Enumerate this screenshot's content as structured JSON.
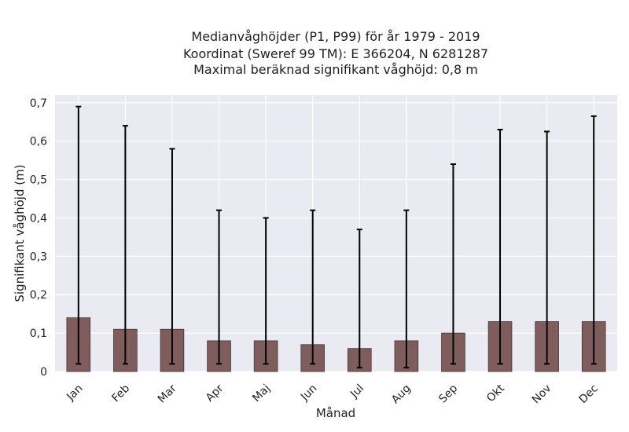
{
  "chart_data": {
    "type": "bar",
    "title_lines": [
      "Medianvåghöjder (P1, P99) för år 1979 - 2019",
      "Koordinat (Sweref 99 TM): E 366204, N 6281287",
      "Maximal beräknad signifikant våghöjd: 0,8 m"
    ],
    "xlabel": "Månad",
    "ylabel": "Signifikant våghöjd (m)",
    "categories": [
      "Jan",
      "Feb",
      "Mar",
      "Apr",
      "Maj",
      "Jun",
      "Jul",
      "Aug",
      "Sep",
      "Okt",
      "Nov",
      "Dec"
    ],
    "series": [
      {
        "values": [
          0.14,
          0.11,
          0.11,
          0.08,
          0.08,
          0.07,
          0.06,
          0.08,
          0.1,
          0.13,
          0.13,
          0.13
        ],
        "p1": [
          0.02,
          0.02,
          0.02,
          0.02,
          0.02,
          0.02,
          0.01,
          0.01,
          0.02,
          0.02,
          0.02,
          0.02
        ],
        "p99": [
          0.69,
          0.64,
          0.58,
          0.42,
          0.4,
          0.42,
          0.37,
          0.42,
          0.54,
          0.63,
          0.625,
          0.665
        ]
      }
    ],
    "yticks": [
      "0",
      "0,1",
      "0,2",
      "0,3",
      "0,4",
      "0,5",
      "0,6",
      "0,7"
    ],
    "ylim": [
      0,
      0.72
    ],
    "grid": true,
    "colors": {
      "bar": "#7f5d5d",
      "bar_edge": "#4a3535",
      "error": "#000000",
      "plot_bg": "#eaeaf2",
      "grid": "#ffffff"
    }
  }
}
